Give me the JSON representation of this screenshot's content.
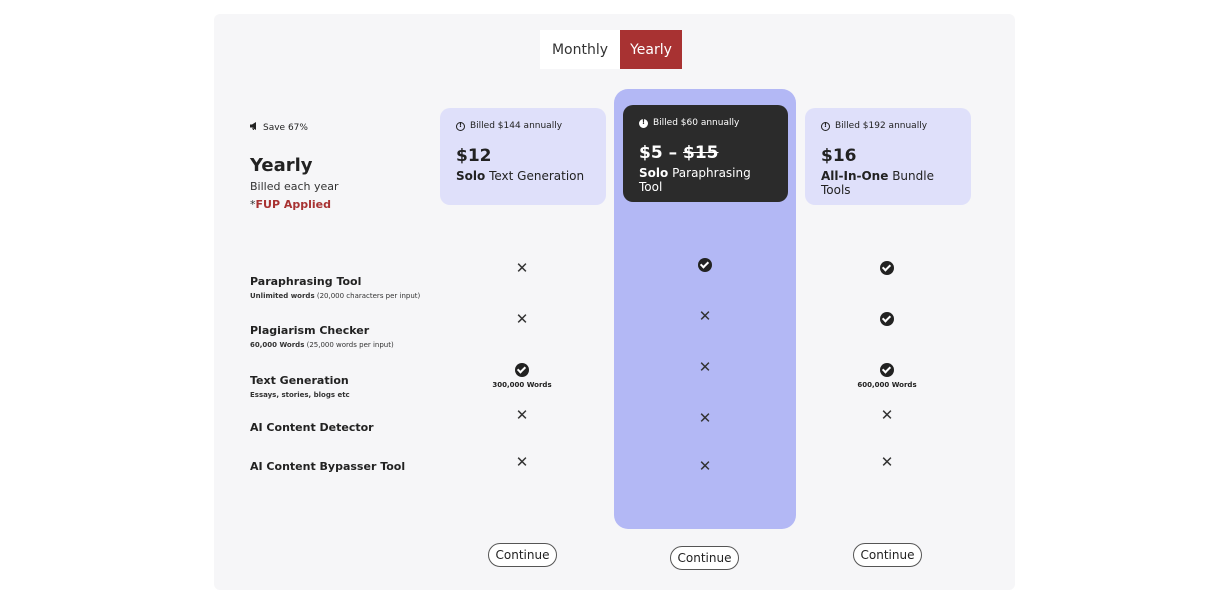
{
  "toggle": {
    "monthly": "Monthly",
    "yearly": "Yearly"
  },
  "left": {
    "save": "Save 67%",
    "title": "Yearly",
    "subtitle": "Billed each year",
    "fup_prefix": "*",
    "fup": "FUP Applied"
  },
  "plans": [
    {
      "billed": "Billed $144 annually",
      "price": "$12",
      "desc_bold": "Solo",
      "desc": "Text Generation"
    },
    {
      "billed": "Billed $60 annually",
      "price": "$5 – ",
      "price_old": "$15",
      "desc_bold": "Solo",
      "desc": "Paraphrasing Tool"
    },
    {
      "billed": "Billed $192 annually",
      "price": "$16",
      "desc_bold": "All-In-One",
      "desc": "Bundle Tools"
    }
  ],
  "features": [
    {
      "name": "Paraphrasing Tool",
      "note_bold": "Unlimited words",
      "note": "(20,000 characters per input)"
    },
    {
      "name": "Plagiarism Checker",
      "note_bold": "60,000 Words",
      "note": "(25,000 words per input)"
    },
    {
      "name": "Text Generation",
      "note_bold": "Essays, stories, blogs etc",
      "note": ""
    },
    {
      "name": "AI Content Detector",
      "note_bold": "",
      "note": ""
    },
    {
      "name": "AI Content Bypasser Tool",
      "note_bold": "",
      "note": ""
    }
  ],
  "word_limits": {
    "plan1": "300,000 Words",
    "plan3": "600,000 Words"
  },
  "continue_label": "Continue",
  "icons": {
    "save": "megaphone-icon",
    "info": "info-icon",
    "included": "check-circle-icon",
    "excluded": "cross-icon"
  },
  "colors": {
    "accent": "#a83232",
    "highlight": "#b3b8f5",
    "light_box": "#dfe0fa",
    "dark_box": "#2b2b2b"
  }
}
